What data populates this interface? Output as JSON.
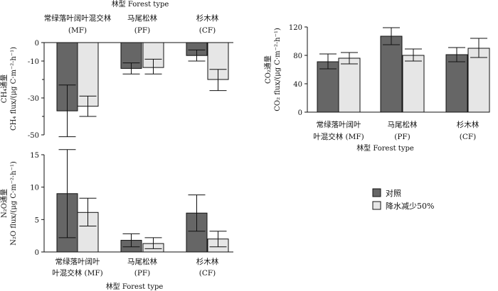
{
  "colors": {
    "control": "#666666",
    "reduction": "#e6e6e6",
    "stroke": "#111111"
  },
  "legend": {
    "control": "对照",
    "reduction": "降水减少50%"
  },
  "chart_data": [
    {
      "id": "ch4",
      "type": "bar",
      "title": "林型 Forest type",
      "ylabel_lines": [
        "CH₄通量",
        "CH₄ flux/(μg C·m⁻²·h⁻¹)"
      ],
      "ylim": [
        -50,
        0
      ],
      "yticks": [
        0,
        -10,
        -30,
        -50
      ],
      "categories": [
        "常绿落叶阔叶混交林 (MF)",
        "马尾松林 (PF)",
        "杉木林 (CF)"
      ],
      "category_labels_top": [
        [
          "常绿落叶阔叶混交林",
          "(MF)"
        ],
        [
          "马尾松林",
          "(PF)"
        ],
        [
          "杉木林",
          "(CF)"
        ]
      ],
      "series": [
        {
          "name": "对照",
          "values": [
            -37,
            -14,
            -7
          ],
          "err_low": [
            -51,
            -17,
            -10
          ],
          "err_high": [
            -23,
            -11,
            -4
          ]
        },
        {
          "name": "降水减少50%",
          "values": [
            -34.5,
            -13.5,
            -20
          ],
          "err_low": [
            -40,
            -17,
            -26
          ],
          "err_high": [
            -29,
            -9,
            -14.5
          ]
        }
      ]
    },
    {
      "id": "n2o",
      "type": "bar",
      "xlabel": "林型 Forest type",
      "ylabel_lines": [
        "N₂O通量",
        "N₂O flux/(μg C·m⁻²·h⁻¹)"
      ],
      "ylim": [
        0,
        15
      ],
      "yticks": [
        0,
        5,
        10,
        15
      ],
      "categories": [
        "常绿落叶阔叶混交林 (MF)",
        "马尾松林 (PF)",
        "杉木林 (CF)"
      ],
      "category_labels": [
        [
          "常绿落叶阔叶",
          "叶混交林 (MF)"
        ],
        [
          "马尾松林",
          "(PF)"
        ],
        [
          "杉木林",
          "(CF)"
        ]
      ],
      "series": [
        {
          "name": "对照",
          "values": [
            9,
            1.8,
            6
          ],
          "err_low": [
            2.2,
            0.8,
            3.2
          ],
          "err_high": [
            15.8,
            2.8,
            8.8
          ]
        },
        {
          "name": "降水减少50%",
          "values": [
            6.1,
            1.3,
            2
          ],
          "err_low": [
            4,
            0.5,
            0.8
          ],
          "err_high": [
            8.3,
            2.2,
            3.2
          ]
        }
      ]
    },
    {
      "id": "co2",
      "type": "bar",
      "xlabel": "林型 Forest type",
      "ylabel_lines": [
        "CO₂通量",
        "CO₂ flux/(μg C·m⁻²·h⁻¹)"
      ],
      "ylim": [
        0,
        120
      ],
      "yticks": [
        0,
        40,
        80,
        120
      ],
      "categories": [
        "常绿落叶阔叶混交林 (MF)",
        "马尾松林 (PF)",
        "杉木林 (CF)"
      ],
      "category_labels": [
        [
          "常绿落叶阔叶",
          "叶混交林 (MF)"
        ],
        [
          "马尾松林",
          "(PF)"
        ],
        [
          "杉木林",
          "(CF)"
        ]
      ],
      "series": [
        {
          "name": "对照",
          "values": [
            71,
            107,
            81
          ],
          "err_low": [
            61,
            95,
            71
          ],
          "err_high": [
            82,
            119,
            91
          ]
        },
        {
          "name": "降水减少50%",
          "values": [
            76,
            80,
            90
          ],
          "err_low": [
            68,
            72,
            77
          ],
          "err_high": [
            84,
            89,
            104
          ]
        }
      ]
    }
  ]
}
